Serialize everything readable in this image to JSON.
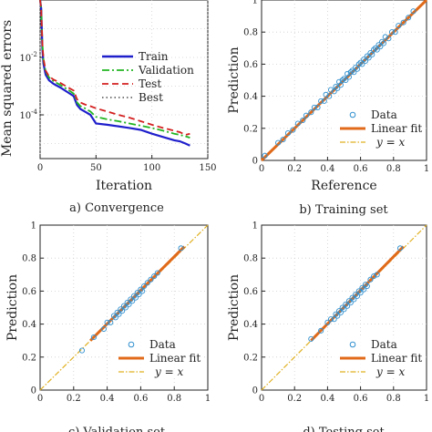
{
  "chart_data": [
    {
      "id": "convergence",
      "type": "line",
      "caption": "a) Convergence",
      "xlabel": "Iteration",
      "ylabel": "Mean squared errors",
      "xlim": [
        0,
        150
      ],
      "ylim": [
        3e-06,
        1
      ],
      "yscale": "log",
      "xticks": [
        "0",
        "50",
        "100",
        "150"
      ],
      "yticks": [
        {
          "value": 0.01,
          "base": "10",
          "exp": "-2"
        },
        {
          "value": 0.0001,
          "base": "10",
          "exp": "-4"
        }
      ],
      "grid": true,
      "legend": "inside top-right",
      "legend_entries": [
        "Train",
        "Validation",
        "Test",
        "Best"
      ],
      "series": [
        {
          "name": "Train",
          "color": "#1f1fcc",
          "dash": "solid",
          "x": [
            0,
            1,
            2,
            3,
            5,
            8,
            12,
            18,
            25,
            30,
            33,
            36,
            40,
            45,
            50,
            60,
            70,
            80,
            90,
            100,
            110,
            120,
            125,
            130,
            134
          ],
          "y": [
            1,
            0.5,
            0.02,
            0.006,
            0.0025,
            0.0016,
            0.0012,
            0.0009,
            0.0006,
            0.00045,
            0.00022,
            0.00016,
            0.00013,
            0.0001,
            5e-05,
            4.5e-05,
            4e-05,
            3.5e-05,
            3e-05,
            2.2e-05,
            1.7e-05,
            1.3e-05,
            1.2e-05,
            1e-05,
            8.5e-06
          ]
        },
        {
          "name": "Validation",
          "color": "#22b522",
          "dash": "dashdot",
          "x": [
            0,
            1,
            2,
            3,
            5,
            8,
            12,
            18,
            25,
            30,
            33,
            36,
            40,
            45,
            50,
            60,
            70,
            80,
            90,
            100,
            110,
            120,
            125,
            130,
            134
          ],
          "y": [
            1,
            0.5,
            0.03,
            0.008,
            0.0032,
            0.002,
            0.0015,
            0.0011,
            0.00075,
            0.00055,
            0.00027,
            0.0002,
            0.00017,
            0.00013,
            8.5e-05,
            7e-05,
            6e-05,
            5e-05,
            4.2e-05,
            3.5e-05,
            2.8e-05,
            2.2e-05,
            2e-05,
            1.8e-05,
            1.6e-05
          ]
        },
        {
          "name": "Test",
          "color": "#d42020",
          "dash": "dashed",
          "x": [
            0,
            1,
            2,
            3,
            5,
            8,
            12,
            18,
            25,
            30,
            33,
            36,
            40,
            45,
            50,
            60,
            70,
            80,
            90,
            100,
            110,
            120,
            125,
            130,
            134
          ],
          "y": [
            1,
            0.5,
            0.03,
            0.009,
            0.0035,
            0.0022,
            0.0017,
            0.0013,
            0.0009,
            0.0007,
            0.00035,
            0.00027,
            0.00023,
            0.0002,
            0.00017,
            0.00013,
            0.0001,
            8e-05,
            6e-05,
            4.5e-05,
            3.5e-05,
            2.8e-05,
            2.5e-05,
            2e-05,
            2.2e-05
          ]
        },
        {
          "name": "Best",
          "color": "#666666",
          "dash": "dotted",
          "x": [],
          "y": []
        }
      ]
    },
    {
      "id": "training",
      "type": "scatter",
      "caption": "b) Training set",
      "xlabel": "Reference",
      "ylabel": "Prediction",
      "xlim": [
        0,
        1
      ],
      "ylim": [
        0,
        1
      ],
      "xticks": [
        "0",
        "0.2",
        "0.4",
        "0.6",
        "0.8",
        "1"
      ],
      "yticks": [
        "0",
        "0.2",
        "0.4",
        "0.6",
        "0.8",
        "1"
      ],
      "grid": true,
      "legend": "bottom-right",
      "legend_entries": [
        "Data",
        "Linear fit",
        "y = x"
      ],
      "points": {
        "x": [
          0.02,
          0.1,
          0.13,
          0.16,
          0.19,
          0.22,
          0.25,
          0.27,
          0.3,
          0.32,
          0.34,
          0.36,
          0.38,
          0.39,
          0.41,
          0.42,
          0.44,
          0.45,
          0.46,
          0.47,
          0.48,
          0.49,
          0.5,
          0.51,
          0.52,
          0.53,
          0.54,
          0.55,
          0.56,
          0.57,
          0.58,
          0.59,
          0.6,
          0.61,
          0.62,
          0.63,
          0.64,
          0.65,
          0.66,
          0.67,
          0.68,
          0.69,
          0.7,
          0.71,
          0.72,
          0.73,
          0.74,
          0.75,
          0.77,
          0.79,
          0.81,
          0.83,
          0.86,
          0.89,
          0.92
        ],
        "y": [
          0.03,
          0.11,
          0.13,
          0.17,
          0.19,
          0.23,
          0.25,
          0.28,
          0.3,
          0.33,
          0.33,
          0.37,
          0.37,
          0.41,
          0.4,
          0.44,
          0.43,
          0.46,
          0.45,
          0.49,
          0.47,
          0.5,
          0.51,
          0.5,
          0.54,
          0.52,
          0.55,
          0.56,
          0.55,
          0.58,
          0.57,
          0.6,
          0.61,
          0.6,
          0.63,
          0.62,
          0.65,
          0.64,
          0.67,
          0.66,
          0.69,
          0.7,
          0.69,
          0.72,
          0.71,
          0.74,
          0.73,
          0.77,
          0.76,
          0.8,
          0.8,
          0.84,
          0.86,
          0.89,
          0.93
        ]
      },
      "fit": {
        "x": [
          0.0,
          1.0
        ],
        "y": [
          0.0,
          1.0
        ]
      },
      "identity": {
        "x": [
          0,
          1
        ],
        "y": [
          0,
          1
        ]
      }
    },
    {
      "id": "validation",
      "type": "scatter",
      "caption": "c) Validation set",
      "xlabel": "",
      "ylabel": "Prediction",
      "xlim": [
        0,
        1
      ],
      "ylim": [
        0,
        1
      ],
      "xticks": [
        "0",
        "0.2",
        "0.4",
        "0.6",
        "0.8",
        "1"
      ],
      "yticks": [
        "0",
        "0.2",
        "0.4",
        "0.6",
        "0.8",
        "1"
      ],
      "grid": true,
      "legend": "bottom-right",
      "legend_entries": [
        "Data",
        "Linear fit",
        "y = x"
      ],
      "points": {
        "x": [
          0.25,
          0.32,
          0.38,
          0.4,
          0.42,
          0.44,
          0.45,
          0.46,
          0.47,
          0.48,
          0.49,
          0.5,
          0.51,
          0.52,
          0.53,
          0.54,
          0.55,
          0.56,
          0.57,
          0.58,
          0.59,
          0.6,
          0.61,
          0.62,
          0.64,
          0.66,
          0.68,
          0.7,
          0.84
        ],
        "y": [
          0.24,
          0.32,
          0.37,
          0.41,
          0.41,
          0.45,
          0.44,
          0.47,
          0.46,
          0.49,
          0.48,
          0.51,
          0.5,
          0.53,
          0.52,
          0.55,
          0.54,
          0.57,
          0.56,
          0.59,
          0.58,
          0.61,
          0.6,
          0.63,
          0.65,
          0.67,
          0.69,
          0.71,
          0.86
        ]
      },
      "fit": {
        "x": [
          0.3,
          0.86
        ],
        "y": [
          0.3,
          0.87
        ]
      },
      "identity": {
        "x": [
          0,
          1
        ],
        "y": [
          0,
          1
        ]
      }
    },
    {
      "id": "test",
      "type": "scatter",
      "caption": "d) Testing set",
      "xlabel": "",
      "ylabel": "Prediction",
      "xlim": [
        0,
        1
      ],
      "ylim": [
        0,
        1
      ],
      "xticks": [
        "0",
        "0.2",
        "0.4",
        "0.6",
        "0.8",
        "1"
      ],
      "yticks": [
        "0",
        "0.2",
        "0.4",
        "0.6",
        "0.8",
        "1"
      ],
      "grid": true,
      "legend": "bottom-right",
      "legend_entries": [
        "Data",
        "Linear fit",
        "y = x"
      ],
      "points": {
        "x": [
          0.3,
          0.36,
          0.4,
          0.42,
          0.44,
          0.45,
          0.46,
          0.47,
          0.48,
          0.49,
          0.5,
          0.51,
          0.52,
          0.53,
          0.54,
          0.55,
          0.56,
          0.57,
          0.58,
          0.59,
          0.6,
          0.61,
          0.62,
          0.63,
          0.64,
          0.66,
          0.68,
          0.7,
          0.84
        ],
        "y": [
          0.31,
          0.36,
          0.41,
          0.43,
          0.43,
          0.46,
          0.45,
          0.48,
          0.47,
          0.5,
          0.49,
          0.52,
          0.51,
          0.54,
          0.53,
          0.56,
          0.55,
          0.58,
          0.57,
          0.6,
          0.59,
          0.62,
          0.61,
          0.64,
          0.63,
          0.67,
          0.69,
          0.7,
          0.86
        ]
      },
      "fit": {
        "x": [
          0.3,
          0.86
        ],
        "y": [
          0.3,
          0.87
        ]
      },
      "identity": {
        "x": [
          0,
          1
        ],
        "y": [
          0,
          1
        ]
      }
    }
  ],
  "colors": {
    "scatter_points": "#2f8fcf",
    "linear_fit": "#e06a1a",
    "identity": "#e0b020",
    "grid": "#cfcfcf",
    "axis": "#222222"
  }
}
